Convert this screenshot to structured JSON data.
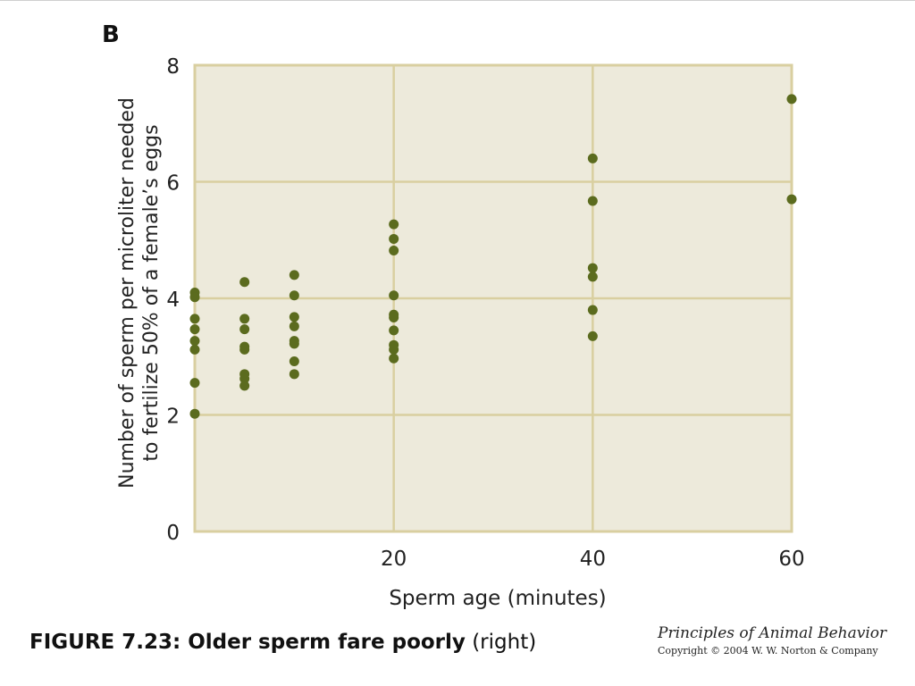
{
  "panel_label": "B",
  "caption": {
    "bold": "FIGURE 7.23: Older sperm fare poorly",
    "normal": " (right)"
  },
  "credit": {
    "title": "Principles of Animal Behavior",
    "copyright": "Copyright © 2004 W. W. Norton & Company"
  },
  "colors": {
    "plot_background": "#edeadb",
    "grid": "#d9cfa0",
    "marker": "#5b6b1e"
  },
  "chart_data": {
    "type": "scatter",
    "title": "",
    "xlabel": "Sperm age (minutes)",
    "ylabel_lines": [
      "Number of sperm per microliter needed",
      "to fertilize 50% of a female’s eggs"
    ],
    "xlim": [
      0,
      60
    ],
    "ylim": [
      0,
      8
    ],
    "x_ticks": [
      20,
      40,
      60
    ],
    "y_ticks": [
      0,
      2,
      4,
      6,
      8
    ],
    "grid": true,
    "points": [
      {
        "x": 0,
        "y": 4.1
      },
      {
        "x": 0,
        "y": 4.02
      },
      {
        "x": 0,
        "y": 3.65
      },
      {
        "x": 0,
        "y": 3.47
      },
      {
        "x": 0,
        "y": 3.27
      },
      {
        "x": 0,
        "y": 3.12
      },
      {
        "x": 0,
        "y": 2.55
      },
      {
        "x": 0,
        "y": 2.02
      },
      {
        "x": 5,
        "y": 4.28
      },
      {
        "x": 5,
        "y": 3.65
      },
      {
        "x": 5,
        "y": 3.47
      },
      {
        "x": 5,
        "y": 3.17
      },
      {
        "x": 5,
        "y": 3.12
      },
      {
        "x": 5,
        "y": 2.7
      },
      {
        "x": 5,
        "y": 2.62
      },
      {
        "x": 5,
        "y": 2.5
      },
      {
        "x": 10,
        "y": 4.4
      },
      {
        "x": 10,
        "y": 4.05
      },
      {
        "x": 10,
        "y": 3.68
      },
      {
        "x": 10,
        "y": 3.52
      },
      {
        "x": 10,
        "y": 3.27
      },
      {
        "x": 10,
        "y": 3.22
      },
      {
        "x": 10,
        "y": 2.92
      },
      {
        "x": 10,
        "y": 2.7
      },
      {
        "x": 20,
        "y": 5.27
      },
      {
        "x": 20,
        "y": 5.02
      },
      {
        "x": 20,
        "y": 4.82
      },
      {
        "x": 20,
        "y": 4.05
      },
      {
        "x": 20,
        "y": 3.72
      },
      {
        "x": 20,
        "y": 3.67
      },
      {
        "x": 20,
        "y": 3.45
      },
      {
        "x": 20,
        "y": 3.2
      },
      {
        "x": 20,
        "y": 3.12
      },
      {
        "x": 20,
        "y": 2.97
      },
      {
        "x": 40,
        "y": 6.4
      },
      {
        "x": 40,
        "y": 5.67
      },
      {
        "x": 40,
        "y": 4.52
      },
      {
        "x": 40,
        "y": 4.37
      },
      {
        "x": 40,
        "y": 3.8
      },
      {
        "x": 40,
        "y": 3.35
      },
      {
        "x": 60,
        "y": 7.42
      },
      {
        "x": 60,
        "y": 5.7
      }
    ]
  }
}
